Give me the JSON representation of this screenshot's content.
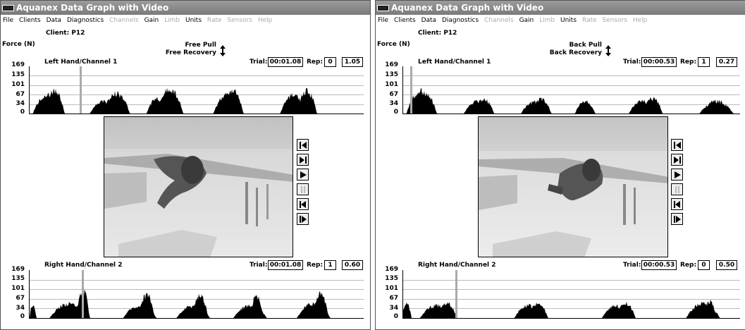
{
  "app": {
    "title": "Aquanex Data Graph with Video",
    "icon": "app-logo-icon"
  },
  "menu": [
    {
      "label": "File",
      "enabled": true
    },
    {
      "label": "Clients",
      "enabled": true
    },
    {
      "label": "Data",
      "enabled": true
    },
    {
      "label": "Diagnostics",
      "enabled": true
    },
    {
      "label": "Channels",
      "enabled": false
    },
    {
      "label": "Gain",
      "enabled": true
    },
    {
      "label": "Limb",
      "enabled": false
    },
    {
      "label": "Units",
      "enabled": true
    },
    {
      "label": "Rate",
      "enabled": false
    },
    {
      "label": "Sensors",
      "enabled": false
    },
    {
      "label": "Help",
      "enabled": false
    }
  ],
  "labels": {
    "trial": "Trial:",
    "rep": "Rep:"
  },
  "ticks": [
    "169",
    "135",
    "101",
    "67",
    "34",
    "0"
  ],
  "video_controls": [
    "skip-to-start-icon",
    "step-forward-icon",
    "play-icon",
    "pause-icon",
    "step-back-icon",
    "frame-forward-icon"
  ],
  "windows": [
    {
      "client": "Client: P12",
      "force_unit": "Force (N)",
      "stroke_a": "Free Pull",
      "stroke_b": "Free Recovery",
      "channel1": {
        "name": "Left Hand/Channel 1",
        "trial": "00:01.08",
        "rep": "0",
        "value": "1.05"
      },
      "channel2": {
        "name": "Right Hand/Channel 2",
        "trial": "00:01.08",
        "rep": "1",
        "value": "0.60"
      }
    },
    {
      "client": "Client: P12",
      "force_unit": "Force (N)",
      "stroke_a": "Back Pull",
      "stroke_b": "Back Recovery",
      "channel1": {
        "name": "Left Hand/Channel 1",
        "trial": "00:00.53",
        "rep": "1",
        "value": "0.27"
      },
      "channel2": {
        "name": "Right Hand/Channel 2",
        "trial": "00:00.53",
        "rep": "0",
        "value": "0.50"
      }
    }
  ]
}
